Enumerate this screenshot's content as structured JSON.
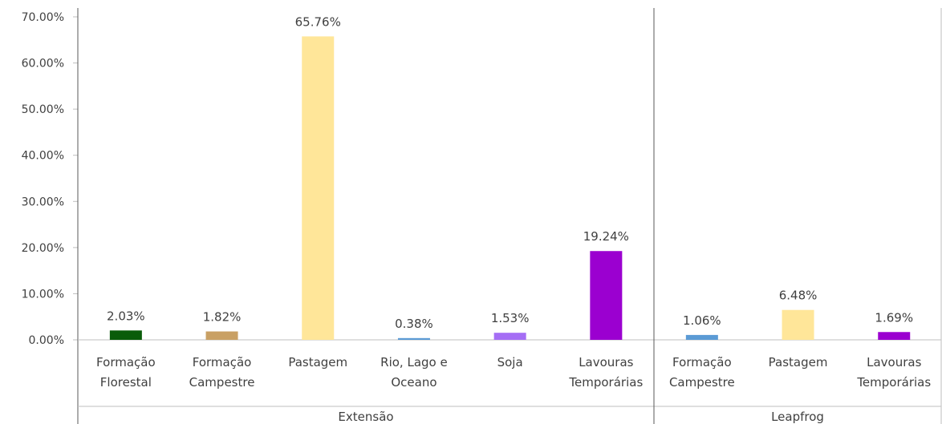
{
  "chart_data": {
    "type": "bar",
    "groups": [
      {
        "name": "Extensão",
        "categories": [
          [
            "Formação",
            "Florestal"
          ],
          [
            "Formação",
            "Campestre"
          ],
          [
            "Pastagem"
          ],
          [
            "Rio, Lago e",
            "Oceano"
          ],
          [
            "Soja"
          ],
          [
            "Lavouras",
            "Temporárias"
          ]
        ],
        "values": [
          2.03,
          1.82,
          65.76,
          0.38,
          1.53,
          19.24
        ],
        "labels": [
          "2.03%",
          "1.82%",
          "65.76%",
          "0.38%",
          "1.53%",
          "19.24%"
        ],
        "colors": [
          "#0a5c0a",
          "#c9a064",
          "#ffe699",
          "#5b9bd5",
          "#a56ef5",
          "#9b00d0"
        ]
      },
      {
        "name": "Leapfrog",
        "categories": [
          [
            "Formação",
            "Campestre"
          ],
          [
            "Pastagem"
          ],
          [
            "Lavouras",
            "Temporárias"
          ]
        ],
        "values": [
          1.06,
          6.48,
          1.69
        ],
        "labels": [
          "1.06%",
          "6.48%",
          "1.69%"
        ],
        "colors": [
          "#5b9bd5",
          "#ffe699",
          "#9b00d0"
        ]
      }
    ],
    "y_ticks": [
      "0.00%",
      "10.00%",
      "20.00%",
      "30.00%",
      "40.00%",
      "50.00%",
      "60.00%",
      "70.00%"
    ],
    "ylim": [
      0,
      70
    ],
    "grid": false,
    "legend": "none"
  }
}
